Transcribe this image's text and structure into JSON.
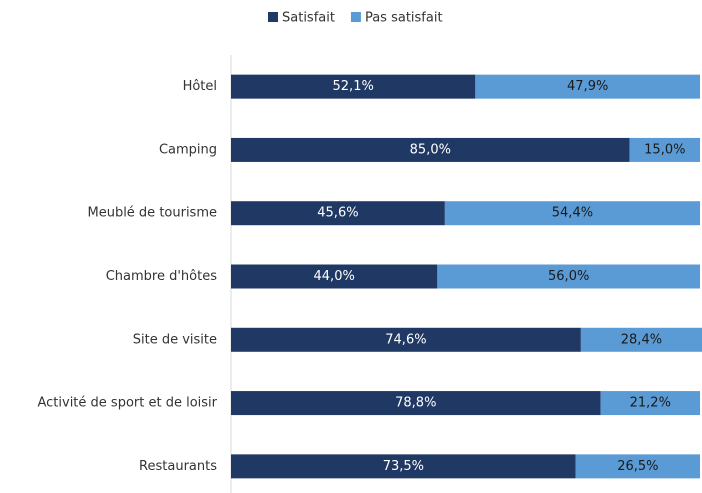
{
  "chart_data": {
    "type": "stacked_barh",
    "categories": [
      "Hôtel",
      "Camping",
      "Meublé de tourisme",
      "Chambre d'hôtes",
      "Site de visite",
      "Activité de sport et de loisir",
      "Restaurants"
    ],
    "series": [
      {
        "name": "Satisfait",
        "color": "#203864",
        "values": [
          52.1,
          85.0,
          45.6,
          44.0,
          74.6,
          78.8,
          73.5
        ],
        "value_labels": [
          "52,1%",
          "85,0%",
          "45,6%",
          "44,0%",
          "74,6%",
          "78,8%",
          "73,5%"
        ]
      },
      {
        "name": "Pas satisfait",
        "color": "#5b9bd5",
        "values": [
          47.9,
          15.0,
          54.4,
          56.0,
          28.4,
          21.2,
          26.5
        ],
        "value_labels": [
          "47,9%",
          "15,0%",
          "54,4%",
          "56,0%",
          "28,4%",
          "21,2%",
          "26,5%"
        ]
      }
    ],
    "xlim": [
      0,
      100
    ],
    "legend": "top"
  }
}
